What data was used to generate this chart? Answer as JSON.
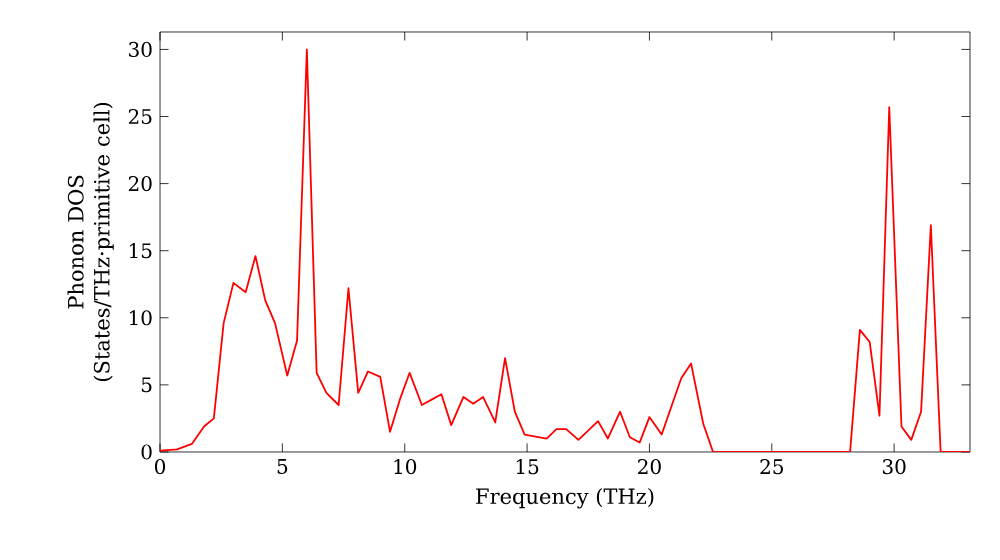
{
  "chart_data": {
    "type": "line",
    "xlabel": "Frequency (THz)",
    "ylabel": "Phonon DOS (States/THz·primitive cell)",
    "xlim": [
      0,
      33.1
    ],
    "ylim": [
      0,
      31.3
    ],
    "xticks": [
      0,
      5,
      10,
      15,
      20,
      25,
      30
    ],
    "yticks": [
      0,
      5,
      10,
      15,
      20,
      25,
      30
    ],
    "marker": "none",
    "line_style": "solid",
    "series": [
      {
        "color": "#ff0000",
        "x": [
          0,
          0.7,
          1.3,
          1.8,
          2.2,
          2.6,
          3.0,
          3.5,
          3.9,
          4.3,
          4.7,
          5.2,
          5.6,
          6.0,
          6.4,
          6.8,
          7.3,
          7.7,
          8.1,
          8.5,
          9.0,
          9.4,
          9.8,
          10.2,
          10.7,
          11.1,
          11.5,
          11.9,
          12.4,
          12.8,
          13.2,
          13.7,
          14.1,
          14.5,
          14.9,
          15.8,
          16.2,
          16.6,
          17.1,
          17.9,
          18.3,
          18.8,
          19.2,
          19.6,
          20.0,
          20.5,
          21.3,
          21.7,
          22.2,
          22.6,
          28.2,
          28.6,
          29.0,
          29.4,
          29.8,
          30.3,
          30.7,
          31.1,
          31.5,
          31.9,
          33.1
        ],
        "values": [
          0.1,
          0.2,
          0.6,
          1.9,
          2.5,
          9.6,
          12.6,
          11.9,
          14.6,
          11.3,
          9.6,
          5.7,
          8.3,
          30.0,
          5.9,
          4.4,
          3.5,
          12.2,
          4.4,
          6.0,
          5.6,
          1.5,
          3.9,
          5.9,
          3.5,
          3.9,
          4.3,
          2.0,
          4.1,
          3.6,
          4.1,
          2.2,
          7.0,
          3.0,
          1.3,
          1.0,
          1.7,
          1.7,
          0.9,
          2.3,
          1.0,
          3.0,
          1.1,
          0.7,
          2.6,
          1.3,
          5.5,
          6.6,
          2.1,
          0,
          0,
          9.1,
          8.2,
          2.7,
          25.7,
          1.9,
          0.9,
          3.0,
          16.9,
          0,
          0
        ]
      }
    ]
  }
}
